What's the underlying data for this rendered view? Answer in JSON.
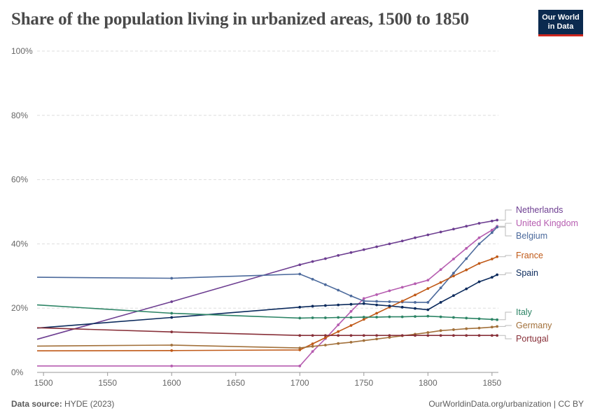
{
  "title": "Share of the population living in urbanized areas, 1500 to 1850",
  "logo": {
    "line1": "Our World",
    "line2": "in Data"
  },
  "footer": {
    "source_label": "Data source:",
    "source_value": "HYDE (2023)",
    "link": "OurWorldinData.org/urbanization | CC BY"
  },
  "chart_data": {
    "type": "line",
    "title": "Share of the population living in urbanized areas, 1500 to 1850",
    "xlabel": "",
    "ylabel": "",
    "xlim": [
      1495,
      1855
    ],
    "ylim": [
      0,
      100
    ],
    "x_ticks": [
      1500,
      1550,
      1600,
      1650,
      1700,
      1750,
      1800,
      1850
    ],
    "y_ticks": [
      0,
      20,
      40,
      60,
      80,
      100
    ],
    "y_tick_suffix": "%",
    "grid": "horizontal-dashed",
    "legend": "right-end-labels",
    "series": [
      {
        "name": "Netherlands",
        "color": "#6d3e91",
        "x": [
          1495,
          1600,
          1700,
          1710,
          1720,
          1730,
          1740,
          1750,
          1760,
          1770,
          1780,
          1790,
          1800,
          1810,
          1820,
          1830,
          1840,
          1850,
          1854
        ],
        "y": [
          10.3,
          22.0,
          33.5,
          34.5,
          35.4,
          36.4,
          37.3,
          38.2,
          39.1,
          40.0,
          40.9,
          41.9,
          42.8,
          43.7,
          44.6,
          45.5,
          46.4,
          47.1,
          47.4
        ]
      },
      {
        "name": "United Kingdom",
        "color": "#b65db0",
        "x": [
          1495,
          1600,
          1700,
          1710,
          1720,
          1730,
          1740,
          1750,
          1760,
          1770,
          1780,
          1790,
          1800,
          1810,
          1820,
          1830,
          1840,
          1850,
          1854
        ],
        "y": [
          2.0,
          2.0,
          2.0,
          6.5,
          10.5,
          14.8,
          19.0,
          23.0,
          24.2,
          25.4,
          26.5,
          27.6,
          28.7,
          32.0,
          35.3,
          38.6,
          41.9,
          44.3,
          45.5
        ]
      },
      {
        "name": "Belgium",
        "color": "#4c6a9c",
        "x": [
          1495,
          1600,
          1700,
          1710,
          1720,
          1730,
          1740,
          1750,
          1760,
          1770,
          1780,
          1790,
          1800,
          1810,
          1820,
          1830,
          1840,
          1850,
          1854
        ],
        "y": [
          29.6,
          29.3,
          30.6,
          29.0,
          27.3,
          25.6,
          23.8,
          22.2,
          22.1,
          22.0,
          21.9,
          21.8,
          21.8,
          26.3,
          30.9,
          35.4,
          40.0,
          43.5,
          45.2
        ]
      },
      {
        "name": "France",
        "color": "#c05917",
        "x": [
          1495,
          1600,
          1700,
          1710,
          1720,
          1730,
          1740,
          1750,
          1760,
          1770,
          1780,
          1790,
          1800,
          1810,
          1820,
          1830,
          1840,
          1850,
          1854
        ],
        "y": [
          6.7,
          6.8,
          7.0,
          8.9,
          10.8,
          12.7,
          14.6,
          16.5,
          18.4,
          20.3,
          22.2,
          24.1,
          26.1,
          28.0,
          30.0,
          31.9,
          33.9,
          35.3,
          36.0
        ]
      },
      {
        "name": "Spain",
        "color": "#0b2a5c",
        "x": [
          1495,
          1600,
          1700,
          1710,
          1720,
          1730,
          1740,
          1750,
          1760,
          1770,
          1780,
          1790,
          1800,
          1810,
          1820,
          1830,
          1840,
          1850,
          1854
        ],
        "y": [
          13.8,
          17.1,
          20.3,
          20.6,
          20.8,
          21.0,
          21.2,
          21.4,
          21.0,
          20.7,
          20.3,
          19.9,
          19.5,
          21.8,
          23.9,
          26.0,
          28.2,
          29.6,
          30.4
        ]
      },
      {
        "name": "Italy",
        "color": "#2c8465",
        "x": [
          1495,
          1600,
          1700,
          1710,
          1720,
          1730,
          1740,
          1750,
          1760,
          1770,
          1780,
          1790,
          1800,
          1810,
          1820,
          1830,
          1840,
          1850,
          1854
        ],
        "y": [
          21.0,
          18.4,
          16.9,
          17.0,
          17.0,
          17.1,
          17.1,
          17.2,
          17.2,
          17.3,
          17.3,
          17.4,
          17.5,
          17.3,
          17.1,
          16.9,
          16.7,
          16.5,
          16.4
        ]
      },
      {
        "name": "Germany",
        "color": "#a2703a",
        "x": [
          1495,
          1600,
          1700,
          1710,
          1720,
          1730,
          1740,
          1750,
          1760,
          1770,
          1780,
          1790,
          1800,
          1810,
          1820,
          1830,
          1840,
          1850,
          1854
        ],
        "y": [
          8.2,
          8.5,
          7.6,
          8.1,
          8.5,
          9.0,
          9.4,
          9.9,
          10.4,
          10.9,
          11.4,
          11.9,
          12.4,
          13.0,
          13.3,
          13.6,
          13.8,
          14.1,
          14.3
        ]
      },
      {
        "name": "Portugal",
        "color": "#883039",
        "x": [
          1495,
          1600,
          1700,
          1710,
          1720,
          1730,
          1740,
          1750,
          1760,
          1770,
          1780,
          1790,
          1800,
          1810,
          1820,
          1830,
          1840,
          1850,
          1854
        ],
        "y": [
          13.9,
          12.6,
          11.5,
          11.5,
          11.5,
          11.5,
          11.5,
          11.5,
          11.5,
          11.5,
          11.5,
          11.5,
          11.5,
          11.5,
          11.5,
          11.5,
          11.5,
          11.5,
          11.5
        ]
      }
    ]
  }
}
